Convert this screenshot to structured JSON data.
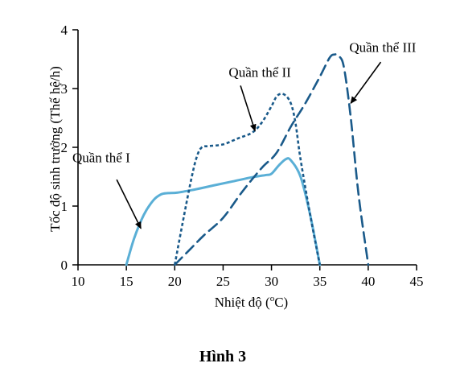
{
  "chart_data": {
    "type": "line",
    "title": "",
    "caption": "Hình 3",
    "xlabel": "Nhiệt độ (",
    "xlabel_sup": "o",
    "xlabel_unit": "C)",
    "ylabel": "Tốc độ sinh trưởng (Thế hệ/h)",
    "xlim": [
      10,
      45
    ],
    "ylim": [
      0,
      4
    ],
    "xticks": [
      "10",
      "15",
      "20",
      "25",
      "30",
      "35",
      "40",
      "45"
    ],
    "yticks": [
      "0",
      "1",
      "2",
      "3",
      "4"
    ],
    "grid": false,
    "legend": "none",
    "series": [
      {
        "name": "Quần thể I",
        "color": "#5aafd6",
        "style": "solid",
        "x": [
          15,
          15.8,
          16.8,
          17.8,
          18.6,
          19.3,
          20.3,
          22,
          24,
          26,
          28,
          29.5,
          30,
          30.8,
          31.5,
          32,
          33,
          34,
          35
        ],
        "y": [
          0,
          0.45,
          0.85,
          1.1,
          1.2,
          1.22,
          1.23,
          1.28,
          1.35,
          1.42,
          1.49,
          1.53,
          1.55,
          1.7,
          1.8,
          1.78,
          1.5,
          0.85,
          0
        ]
      },
      {
        "name": "Quần thể II",
        "color": "#1a5a8a",
        "style": "dotted",
        "x": [
          20,
          20.8,
          21.7,
          22.3,
          22.8,
          23.5,
          25,
          26.5,
          28,
          29,
          30,
          30.6,
          31.3,
          32,
          32.5,
          33,
          34,
          35
        ],
        "y": [
          0,
          0.7,
          1.45,
          1.85,
          2.0,
          2.02,
          2.05,
          2.15,
          2.25,
          2.42,
          2.7,
          2.88,
          2.9,
          2.75,
          2.4,
          1.8,
          0.85,
          0
        ]
      },
      {
        "name": "Quần thể III",
        "color": "#1a5a8a",
        "style": "dashed",
        "x": [
          20,
          21.5,
          23,
          25,
          27,
          29,
          30.5,
          32,
          33.5,
          35,
          36,
          36.5,
          37,
          37.5,
          38.2,
          39,
          40
        ],
        "y": [
          0,
          0.25,
          0.5,
          0.8,
          1.25,
          1.65,
          1.9,
          2.35,
          2.75,
          3.2,
          3.52,
          3.58,
          3.55,
          3.35,
          2.5,
          1.2,
          0
        ]
      }
    ],
    "annotations": [
      {
        "label": "Quần thể I",
        "series": 0,
        "text_at": [
          12.4,
          1.75
        ],
        "arrow_tail": [
          14.0,
          1.45
        ],
        "arrow_head": [
          16.5,
          0.62
        ]
      },
      {
        "label": "Quần thể II",
        "series": 1,
        "text_at": [
          28.8,
          3.2
        ],
        "arrow_tail": [
          26.8,
          3.05
        ],
        "arrow_head": [
          28.3,
          2.28
        ]
      },
      {
        "label": "Quần thể III",
        "series": 2,
        "text_at": [
          41.5,
          3.62
        ],
        "arrow_tail": [
          41.3,
          3.45
        ],
        "arrow_head": [
          38.2,
          2.75
        ]
      }
    ]
  }
}
